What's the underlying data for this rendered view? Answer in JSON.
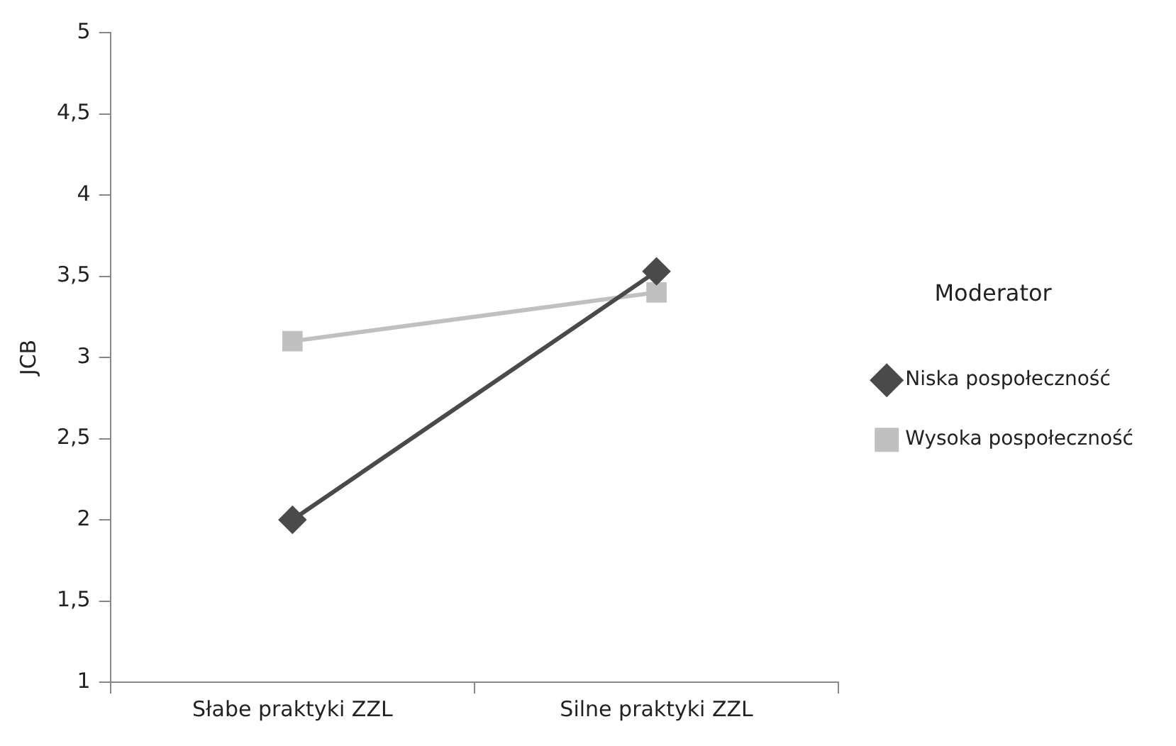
{
  "chart_data": {
    "type": "line",
    "ylabel": "JCB",
    "legend_title": "Moderator",
    "legend": "right",
    "grid": false,
    "categories": [
      "Słabe praktyki ZZL",
      "Silne praktyki ZZL"
    ],
    "series": [
      {
        "name": "Niska pospołeczność",
        "color": "#4a4a4a",
        "marker": "diamond",
        "values": [
          2,
          3.53
        ]
      },
      {
        "name": "Wysoka pospołeczność",
        "color": "#c0c0c0",
        "marker": "square",
        "values": [
          3.1,
          3.4
        ]
      }
    ],
    "ylim": [
      1,
      5
    ],
    "yticks": [
      1,
      {
        "value": 1.5,
        "label": "1,5"
      },
      2,
      {
        "value": 2.5,
        "label": "2,5"
      },
      3,
      {
        "value": 3.5,
        "label": "3,5"
      },
      4,
      {
        "value": 4.5,
        "label": "4,5"
      },
      5
    ]
  }
}
